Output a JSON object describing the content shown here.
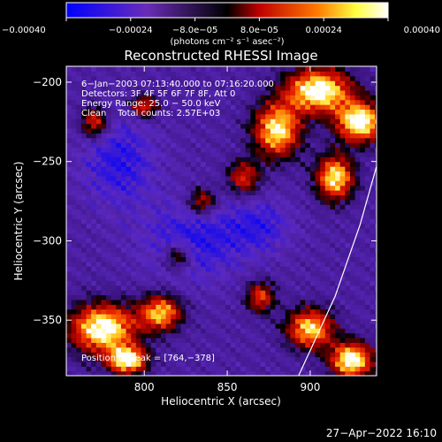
{
  "chart_data": {
    "type": "heatmap",
    "title": "Reconstructed RHESSI Image",
    "xlabel": "Heliocentric X (arcsec)",
    "ylabel": "Heliocentric Y (arcsec)",
    "xlim": [
      753,
      940
    ],
    "ylim": [
      -385,
      -190
    ],
    "x_ticks": [
      800,
      850,
      900
    ],
    "x_tick_labels": [
      "800",
      "850",
      "900"
    ],
    "y_ticks": [
      -200,
      -250,
      -300,
      -350
    ],
    "y_tick_labels": [
      "−200",
      "−250",
      "−300",
      "−350"
    ],
    "colorbar": {
      "range": [
        -0.0004,
        0.0004
      ],
      "ticks": [
        -0.0004,
        -0.00024,
        -8e-05,
        8e-05,
        0.00024,
        0.0004
      ],
      "tick_labels": [
        "−0.00040",
        "−0.00024",
        "−8.0e−05",
        "8.0e−05",
        "0.00024",
        "0.00040"
      ],
      "unit_text": "(photons cm⁻² s⁻¹ asec⁻²)",
      "colors": [
        "#0000ff",
        "#6a2cb8",
        "#000000",
        "#c00000",
        "#ff7a00",
        "#ffff40",
        "#ffffff"
      ]
    },
    "annotations": [
      "6−Jan−2003 07:13:40.000 to 07:16:20.000",
      "Detectors: 3F 4F 5F 6F 7F 8F, Att 0",
      "Energy Range: 25.0 − 50.0 keV",
      "Clean    Total counts: 2.57E+03"
    ],
    "peak_label": "Position of Peak = [764,−378]",
    "limb_arc": {
      "color": "#ffffff",
      "points": [
        [
          893,
          -385
        ],
        [
          915,
          -335
        ],
        [
          930,
          -290
        ],
        [
          940,
          -253
        ]
      ]
    },
    "intensity_blobs": [
      {
        "x": 905,
        "y": -205,
        "sx": 14,
        "sy": 10,
        "a": 1.0
      },
      {
        "x": 930,
        "y": -225,
        "sx": 10,
        "sy": 9,
        "a": 1.0
      },
      {
        "x": 880,
        "y": -230,
        "sx": 10,
        "sy": 12,
        "a": 0.9
      },
      {
        "x": 915,
        "y": -260,
        "sx": 8,
        "sy": 10,
        "a": 0.9
      },
      {
        "x": 860,
        "y": -260,
        "sx": 7,
        "sy": 8,
        "a": 0.55
      },
      {
        "x": 775,
        "y": -355,
        "sx": 14,
        "sy": 11,
        "a": 1.0
      },
      {
        "x": 810,
        "y": -345,
        "sx": 9,
        "sy": 8,
        "a": 0.8
      },
      {
        "x": 900,
        "y": -355,
        "sx": 10,
        "sy": 9,
        "a": 0.85
      },
      {
        "x": 925,
        "y": -375,
        "sx": 9,
        "sy": 8,
        "a": 1.0
      },
      {
        "x": 800,
        "y": -215,
        "sx": 6,
        "sy": 5,
        "a": 0.6
      },
      {
        "x": 835,
        "y": -275,
        "sx": 6,
        "sy": 6,
        "a": 0.55
      },
      {
        "x": 770,
        "y": -225,
        "sx": 6,
        "sy": 7,
        "a": 0.6
      },
      {
        "x": 820,
        "y": -310,
        "sx": 6,
        "sy": 6,
        "a": 0.5
      },
      {
        "x": 790,
        "y": -375,
        "sx": 8,
        "sy": 6,
        "a": 1.0
      },
      {
        "x": 870,
        "y": -335,
        "sx": 6,
        "sy": 7,
        "a": 0.6
      }
    ],
    "cool_blobs": [
      {
        "x": 785,
        "y": -250,
        "sx": 16,
        "sy": 20,
        "a": 1.0
      },
      {
        "x": 830,
        "y": -300,
        "sx": 22,
        "sy": 18,
        "a": 1.0
      },
      {
        "x": 870,
        "y": -290,
        "sx": 14,
        "sy": 12,
        "a": 0.8
      }
    ]
  },
  "timestamp": "27−Apr−2022 16:10"
}
